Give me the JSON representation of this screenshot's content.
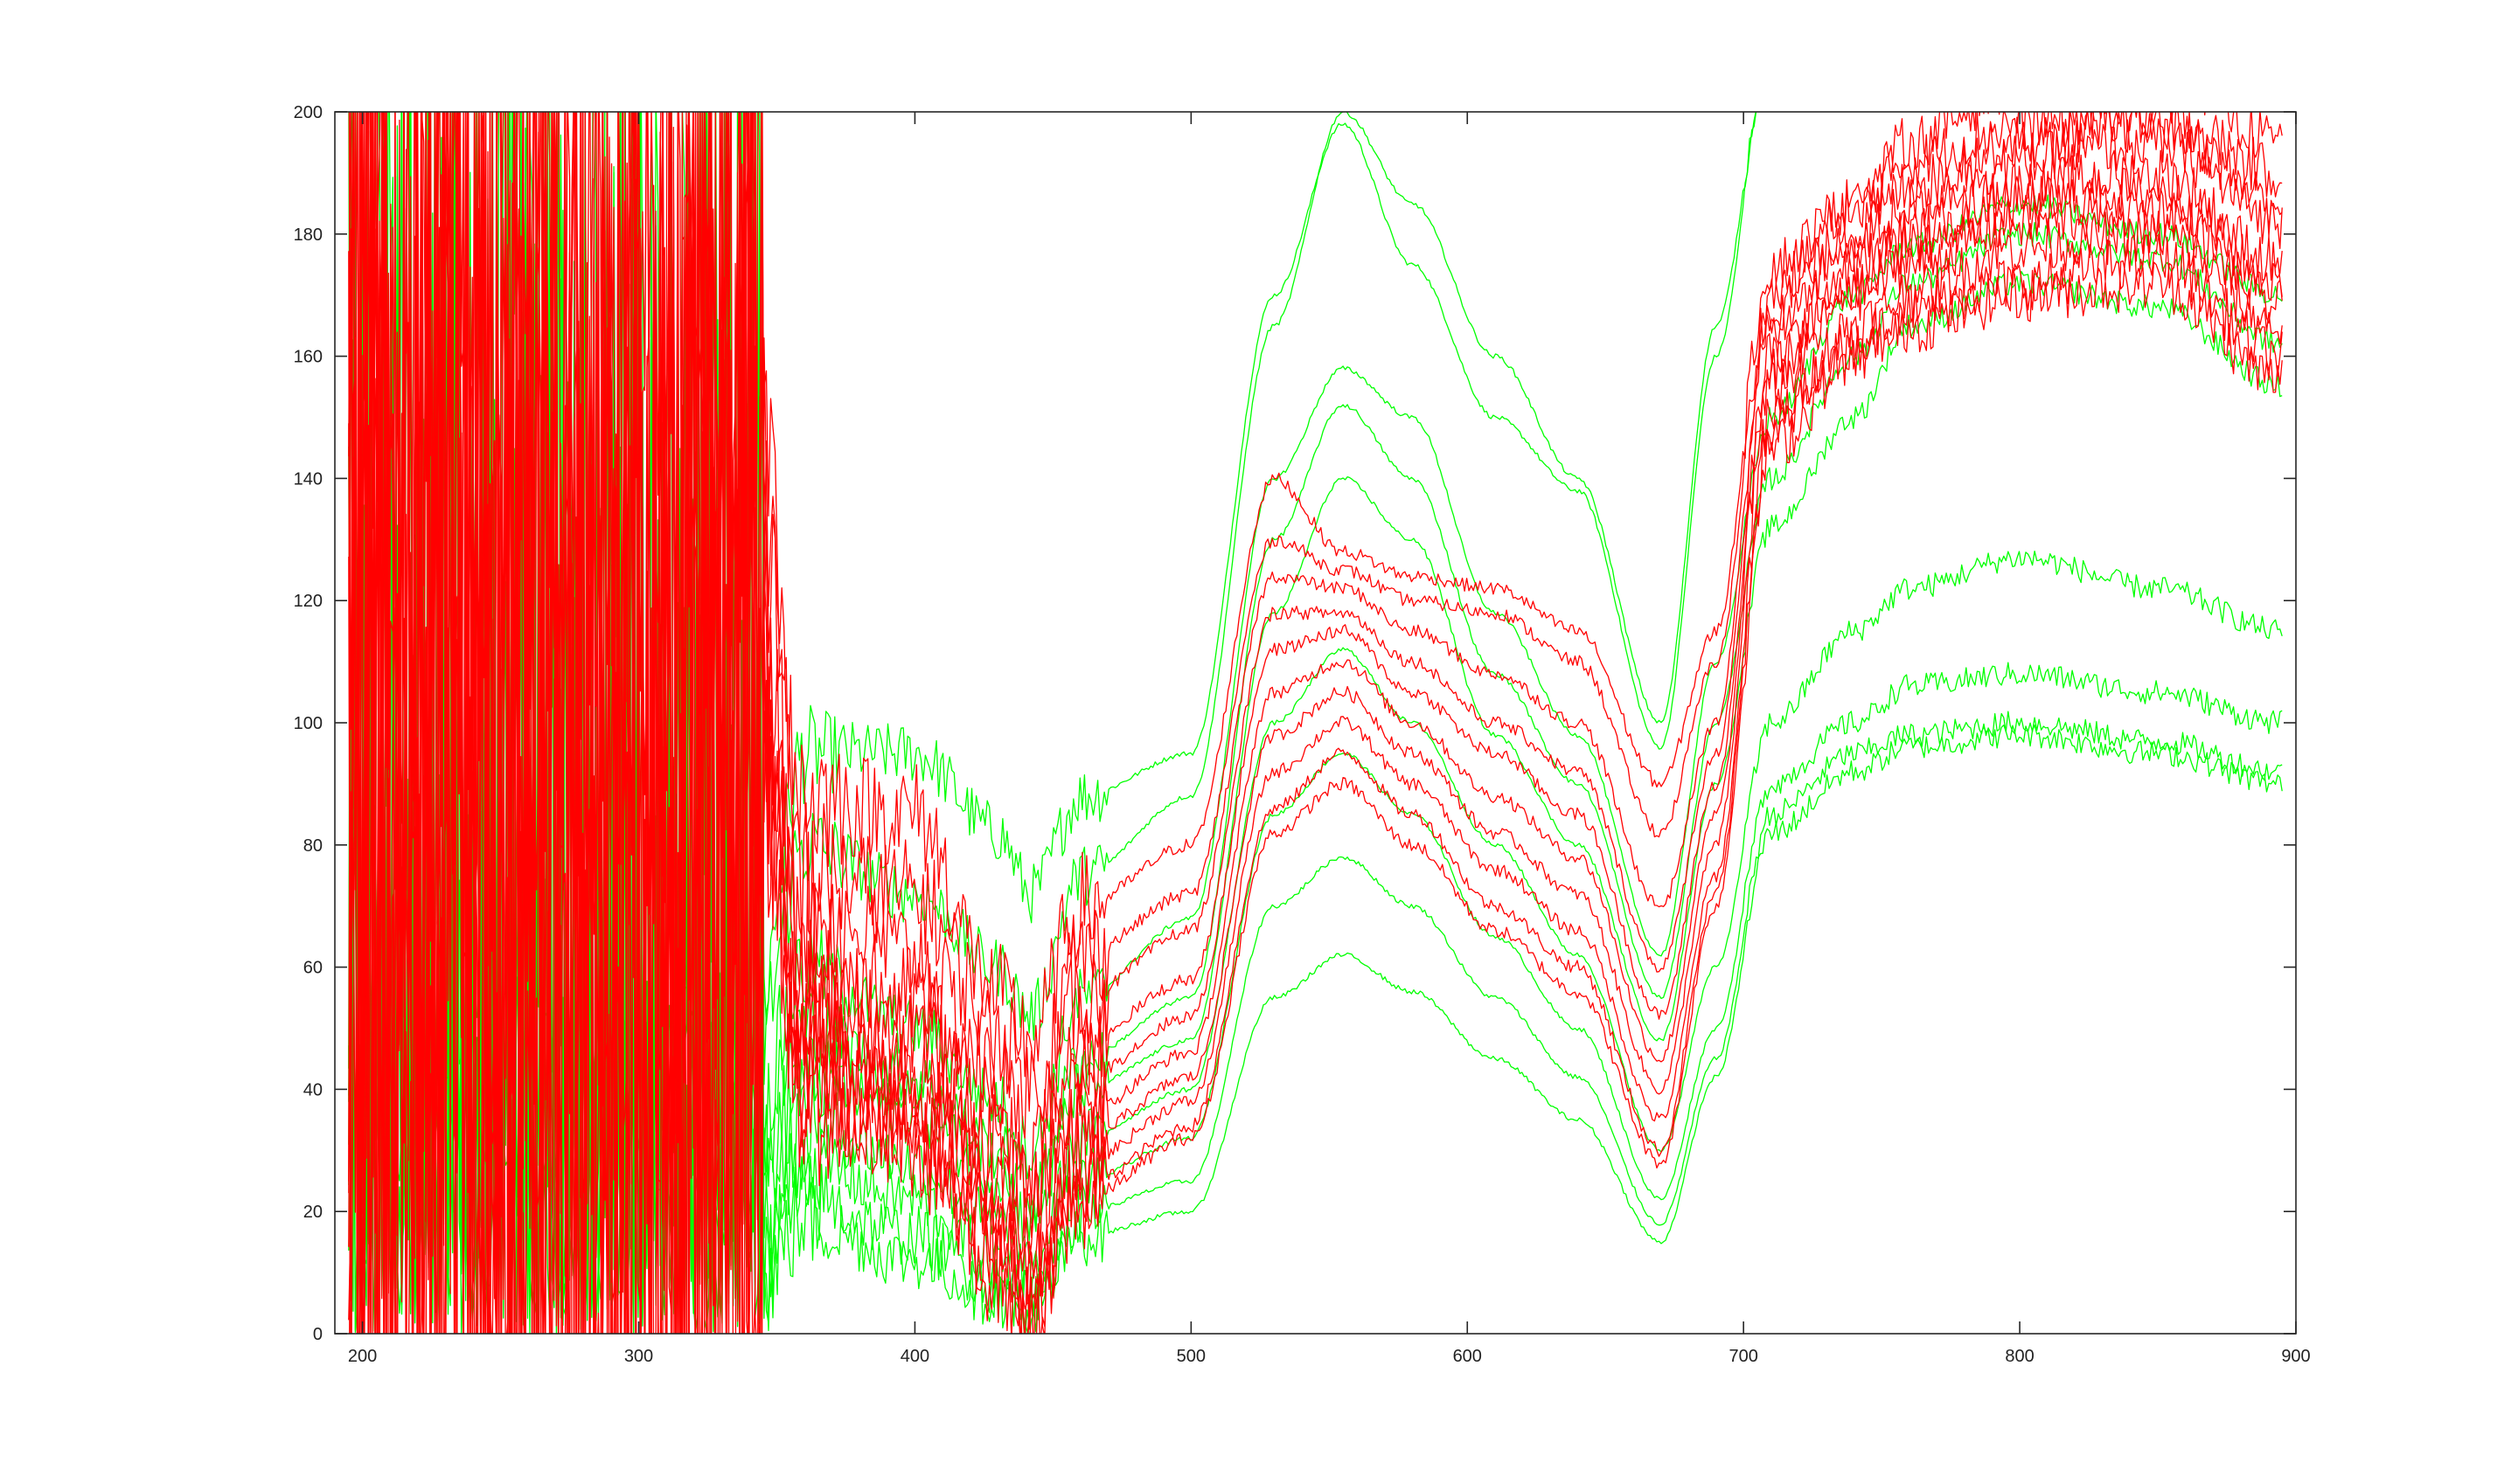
{
  "chart_data": {
    "type": "line",
    "title": "",
    "xlabel": "",
    "ylabel": "",
    "xlim": [
      190,
      900
    ],
    "ylim": [
      0,
      200
    ],
    "xticks": [
      200,
      300,
      400,
      500,
      600,
      700,
      800,
      900
    ],
    "yticks": [
      0,
      20,
      40,
      60,
      80,
      100,
      120,
      140,
      160,
      180,
      200
    ],
    "grid": false,
    "legend": "none",
    "colors": {
      "red": "#ff0000",
      "green": "#00ff00",
      "axis": "#262626",
      "background": "#ffffff"
    },
    "note_on_values": "y values approximated from the plotted curves; below 345 the curves are dominated by noise spanning the full axis range",
    "x": [
      195,
      250,
      300,
      340,
      360,
      400,
      430,
      442,
      460,
      500,
      530,
      555,
      580,
      610,
      640,
      670,
      690,
      710,
      740,
      760,
      800,
      850,
      895
    ],
    "series": [
      {
        "color": "red",
        "values": [
          200,
          200,
          200,
          170,
          88,
          85,
          55,
          48,
          70,
          80,
          140,
          128,
          124,
          122,
          115,
          90,
          115,
          175,
          185,
          195,
          205,
          208,
          195
        ]
      },
      {
        "color": "red",
        "values": [
          200,
          200,
          200,
          160,
          75,
          72,
          50,
          40,
          62,
          72,
          130,
          125,
          120,
          118,
          110,
          82,
          110,
          170,
          185,
          192,
          198,
          200,
          190
        ]
      },
      {
        "color": "red",
        "values": [
          200,
          200,
          200,
          150,
          70,
          62,
          42,
          30,
          55,
          66,
          124,
          122,
          115,
          108,
          100,
          70,
          100,
          168,
          180,
          188,
          195,
          198,
          185
        ]
      },
      {
        "color": "red",
        "values": [
          200,
          200,
          200,
          140,
          60,
          55,
          35,
          22,
          48,
          58,
          118,
          118,
          110,
          100,
          92,
          60,
          95,
          165,
          178,
          185,
          192,
          195,
          182
        ]
      },
      {
        "color": "red",
        "values": [
          200,
          200,
          200,
          130,
          55,
          50,
          30,
          18,
          42,
          52,
          112,
          115,
          105,
          95,
          85,
          52,
          90,
          160,
          175,
          180,
          188,
          190,
          175
        ]
      },
      {
        "color": "red",
        "values": [
          200,
          200,
          200,
          125,
          50,
          45,
          25,
          12,
          36,
          46,
          105,
          110,
          100,
          88,
          78,
          45,
          85,
          158,
          172,
          178,
          185,
          187,
          172
        ]
      },
      {
        "color": "red",
        "values": [
          200,
          200,
          200,
          120,
          45,
          40,
          20,
          8,
          32,
          42,
          98,
          105,
          95,
          82,
          72,
          40,
          80,
          155,
          170,
          175,
          182,
          184,
          168
        ]
      },
      {
        "color": "red",
        "values": [
          200,
          200,
          200,
          115,
          42,
          36,
          16,
          4,
          28,
          38,
          92,
          100,
          90,
          76,
          66,
          35,
          75,
          150,
          165,
          170,
          178,
          180,
          165
        ]
      },
      {
        "color": "red",
        "values": [
          200,
          200,
          200,
          110,
          40,
          32,
          12,
          2,
          24,
          34,
          86,
          95,
          85,
          70,
          60,
          30,
          72,
          148,
          162,
          168,
          172,
          176,
          160
        ]
      },
      {
        "color": "red",
        "values": [
          200,
          200,
          200,
          105,
          38,
          30,
          10,
          0,
          22,
          32,
          82,
          90,
          80,
          66,
          56,
          28,
          70,
          145,
          160,
          165,
          170,
          172,
          156
        ]
      },
      {
        "color": "green",
        "values": [
          0,
          0,
          0,
          45,
          95,
          95,
          82,
          72,
          88,
          95,
          170,
          198,
          175,
          150,
          138,
          96,
          160,
          210,
          210,
          210,
          210,
          210,
          210
        ]
      },
      {
        "color": "green",
        "values": [
          0,
          0,
          0,
          40,
          80,
          72,
          60,
          52,
          75,
          88,
          165,
          200,
          185,
          160,
          140,
          100,
          165,
          210,
          210,
          210,
          210,
          210,
          210
        ]
      },
      {
        "color": "green",
        "values": [
          0,
          0,
          0,
          30,
          60,
          50,
          38,
          30,
          55,
          68,
          140,
          158,
          150,
          118,
          98,
          62,
          110,
          150,
          170,
          178,
          185,
          180,
          170
        ]
      },
      {
        "color": "green",
        "values": [
          0,
          0,
          0,
          25,
          50,
          42,
          30,
          22,
          45,
          55,
          130,
          152,
          140,
          108,
          90,
          55,
          100,
          140,
          160,
          172,
          180,
          176,
          162
        ]
      },
      {
        "color": "green",
        "values": [
          0,
          0,
          0,
          20,
          42,
          36,
          26,
          18,
          40,
          48,
          118,
          140,
          130,
          98,
          80,
          48,
          90,
          132,
          150,
          165,
          172,
          168,
          155
        ]
      },
      {
        "color": "green",
        "values": [
          0,
          0,
          0,
          15,
          35,
          28,
          18,
          10,
          32,
          40,
          100,
          112,
          100,
          80,
          62,
          30,
          60,
          100,
          115,
          122,
          127,
          122,
          115
        ]
      },
      {
        "color": "green",
        "values": [
          0,
          0,
          0,
          10,
          28,
          22,
          12,
          6,
          25,
          32,
          85,
          95,
          85,
          65,
          50,
          22,
          50,
          90,
          100,
          106,
          108,
          105,
          100
        ]
      },
      {
        "color": "green",
        "values": [
          0,
          0,
          0,
          8,
          22,
          16,
          8,
          4,
          20,
          25,
          70,
          78,
          70,
          55,
          42,
          18,
          45,
          85,
          95,
          98,
          100,
          97,
          92
        ]
      },
      {
        "color": "green",
        "values": [
          0,
          0,
          0,
          6,
          18,
          12,
          6,
          3,
          16,
          20,
          55,
          62,
          56,
          45,
          35,
          15,
          42,
          82,
          92,
          96,
          98,
          95,
          90
        ]
      }
    ]
  }
}
